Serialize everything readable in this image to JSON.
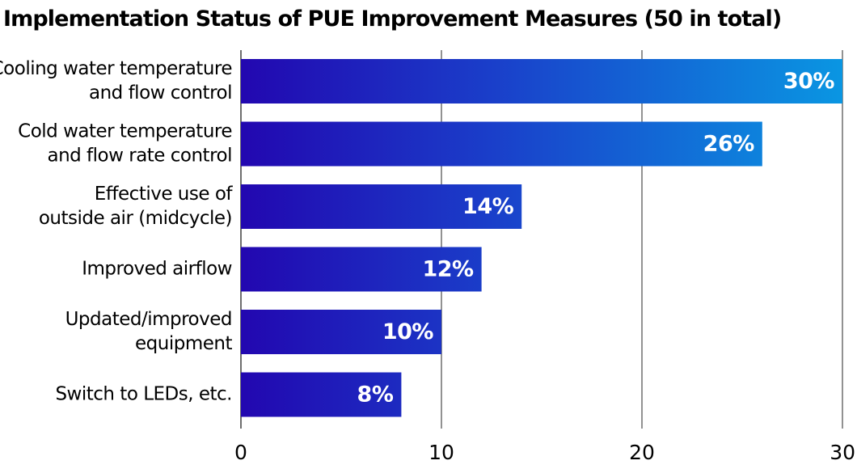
{
  "chart_data": {
    "type": "bar",
    "orientation": "horizontal",
    "title": "Implementation Status of PUE Improvement Measures (50 in total)",
    "categories": [
      [
        "Cooling water temperature",
        "and flow control"
      ],
      [
        "Cold water temperature",
        "and flow rate control"
      ],
      [
        "Effective use of",
        "outside air (midcycle)"
      ],
      [
        "Improved airflow"
      ],
      [
        "Updated/improved",
        "equipment"
      ],
      [
        "Switch to LEDs, etc."
      ]
    ],
    "values": [
      30,
      26,
      14,
      12,
      10,
      8
    ],
    "data_labels": [
      "30%",
      "26%",
      "14%",
      "12%",
      "10%",
      "8%"
    ],
    "xlim": [
      0,
      30
    ],
    "x_ticks": [
      0,
      10,
      20,
      30
    ],
    "x_tick_labels": [
      "0",
      "10",
      "20",
      "30"
    ],
    "xlabel": "",
    "ylabel": "",
    "grid": true,
    "legend": "none",
    "colors": {
      "bar_dark": "#2207b0",
      "bar_light": "#0a96e2",
      "bar_base": "#1a3fca",
      "gridline": "#4a4a4a",
      "text": "#000000",
      "data_label": "#ffffff"
    }
  }
}
